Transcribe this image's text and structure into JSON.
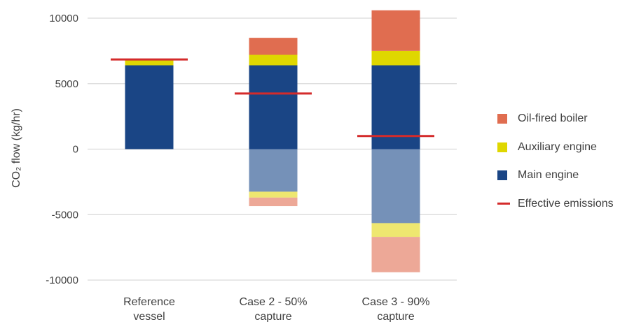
{
  "chart_data": {
    "type": "bar",
    "stacked": true,
    "categories": [
      [
        "Reference",
        "vessel"
      ],
      [
        "Case 2 - 50%",
        "capture"
      ],
      [
        "Case 3 - 90%",
        "capture"
      ]
    ],
    "ylabel": "CO₂ flow (kg/hr)",
    "ylim": [
      -10000,
      10000
    ],
    "yticks": [
      10000,
      5000,
      0,
      -5000,
      -10000
    ],
    "grid": true,
    "legend_position": "right",
    "series": [
      {
        "name": "Main engine",
        "color": "#1a4585",
        "values": [
          6400,
          6400,
          6400
        ]
      },
      {
        "name": "Auxiliary engine",
        "color": "#dfd700",
        "values": [
          400,
          800,
          1100
        ]
      },
      {
        "name": "Oil-fired boiler",
        "color": "#e06d50",
        "values": [
          0,
          1300,
          3100
        ]
      }
    ],
    "capture_series": [
      {
        "name": "Main engine",
        "color": "#7591b8",
        "values": [
          0,
          -3250,
          -5650
        ]
      },
      {
        "name": "Auxiliary engine",
        "color": "#eee770",
        "values": [
          0,
          -450,
          -1050
        ]
      },
      {
        "name": "Oil-fired boiler",
        "color": "#eda897",
        "values": [
          0,
          -650,
          -2700
        ]
      }
    ],
    "effective_emissions": {
      "name": "Effective emissions",
      "color": "#d42b2b",
      "values": [
        6850,
        4250,
        1000
      ]
    },
    "legend": [
      {
        "label": "Oil-fired boiler",
        "color": "#e06d50",
        "kind": "box"
      },
      {
        "label": "Auxiliary engine",
        "color": "#dfd700",
        "kind": "box"
      },
      {
        "label": "Main engine",
        "color": "#1a4585",
        "kind": "box"
      },
      {
        "label": "Effective emissions",
        "color": "#d42b2b",
        "kind": "line"
      }
    ]
  }
}
